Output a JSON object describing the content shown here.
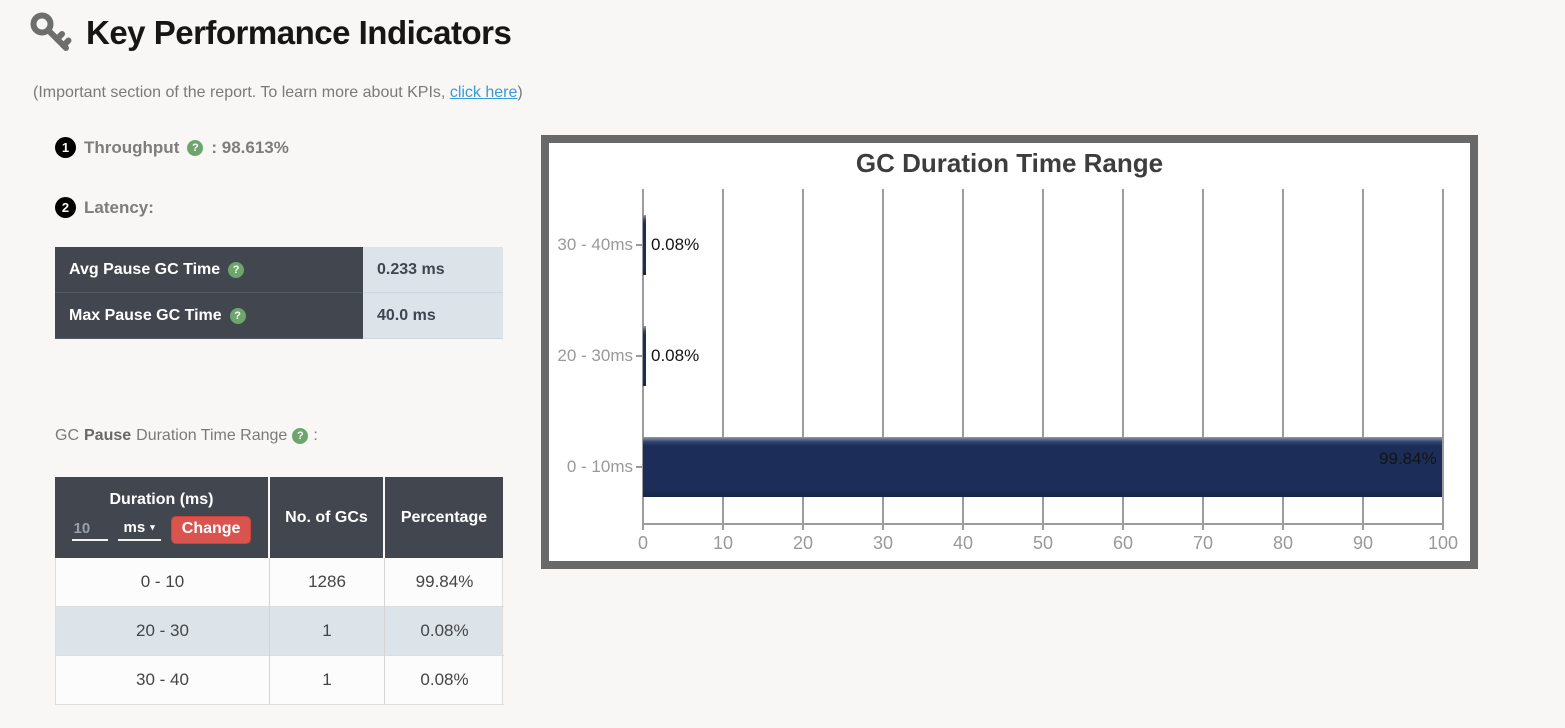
{
  "page": {
    "title": "Key Performance Indicators",
    "subtitle_prefix": "(Important section of the report. To learn more about KPIs, ",
    "subtitle_link": "click here",
    "subtitle_suffix": ")"
  },
  "icons": {
    "help": "?",
    "caret": "▾"
  },
  "throughput": {
    "number": "1",
    "label": "Throughput",
    "value": ": 98.613%"
  },
  "latency": {
    "number": "2",
    "label": "Latency:",
    "rows": [
      {
        "label": "Avg Pause GC Time",
        "value": "0.233 ms"
      },
      {
        "label": "Max Pause GC Time",
        "value": "40.0 ms"
      }
    ]
  },
  "duration_section": {
    "prefix": "GC",
    "bold": "Pause",
    "rest": "Duration Time Range",
    "colon": ":"
  },
  "duration_table": {
    "header": {
      "col1": "Duration (ms)",
      "input_value": "10",
      "unit": "ms",
      "change_label": "Change",
      "col2": "No. of GCs",
      "col3": "Percentage"
    },
    "rows": [
      {
        "range": "0 - 10",
        "count": "1286",
        "pct": "99.84%"
      },
      {
        "range": "20 - 30",
        "count": "1",
        "pct": "0.08%"
      },
      {
        "range": "30 - 40",
        "count": "1",
        "pct": "0.08%"
      }
    ]
  },
  "chart_data": {
    "type": "bar",
    "orientation": "horizontal",
    "title": "GC Duration Time Range",
    "categories": [
      "30 - 40ms",
      "20 - 30ms",
      "0 - 10ms"
    ],
    "values": [
      0.08,
      0.08,
      99.84
    ],
    "labels": [
      "0.08%",
      "0.08%",
      "99.84%"
    ],
    "x_ticks": [
      0,
      10,
      20,
      30,
      40,
      50,
      60,
      70,
      80,
      90,
      100
    ],
    "xlim": [
      0,
      100
    ],
    "grid": true,
    "legend": "none",
    "bar_color": "#1b2d58",
    "unit": "%"
  },
  "colors": {
    "table_header_bg": "#42474f",
    "table_stripe_bg": "#dce4ea",
    "change_button_bg": "#d9534f",
    "help_icon_bg": "#6da56d",
    "bar_navy": "#1b2d58",
    "link_blue": "#3a9bd5",
    "chart_border_gray": "#696969"
  }
}
